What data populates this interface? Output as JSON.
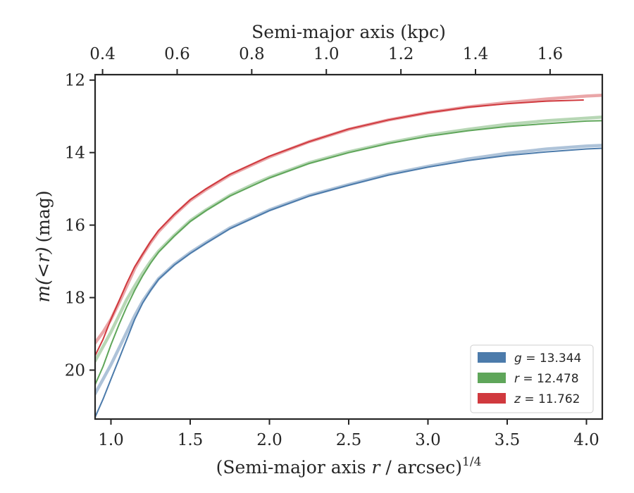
{
  "chart_data": {
    "type": "line",
    "xlabel": "(Semi-major axis r / arcsec)^1/4",
    "xlabel_parts": {
      "pre": "(Semi-major axis ",
      "var": "r",
      "post": " / arcsec)",
      "sup": "1/4"
    },
    "ylabel": "m(<r) (mag)",
    "ylabel_parts": {
      "math": "m(<r)",
      "unit": "(mag)"
    },
    "top_xlabel": "Semi-major axis (kpc)",
    "xlim": [
      0.9,
      4.1
    ],
    "ylim": [
      21.35,
      11.85
    ],
    "y_inverted": true,
    "top_xlim": [
      0.38,
      1.74
    ],
    "x_ticks": [
      "1.0",
      "1.5",
      "2.0",
      "2.5",
      "3.0",
      "3.5",
      "4.0"
    ],
    "y_ticks": [
      "12",
      "14",
      "16",
      "18",
      "20"
    ],
    "top_x_ticks": [
      "0.4",
      "0.6",
      "0.8",
      "1.0",
      "1.2",
      "1.4",
      "1.6"
    ],
    "grid": false,
    "legend_position": "lower-right",
    "series": [
      {
        "name": "g = 13.344",
        "legend_var": "g",
        "legend_value": "13.344",
        "color": "#4c7bab",
        "observed": {
          "x": [
            0.9,
            0.95,
            1.0,
            1.05,
            1.1,
            1.15,
            1.2,
            1.25,
            1.3,
            1.4,
            1.5,
            1.6,
            1.75,
            1.9,
            2.0,
            2.25,
            2.5,
            2.75,
            3.0,
            3.25,
            3.5,
            3.75,
            4.0,
            4.1
          ],
          "y": [
            21.3,
            20.8,
            20.25,
            19.7,
            19.15,
            18.6,
            18.15,
            17.8,
            17.5,
            17.1,
            16.78,
            16.5,
            16.1,
            15.8,
            15.6,
            15.2,
            14.9,
            14.62,
            14.4,
            14.22,
            14.08,
            13.98,
            13.9,
            13.88
          ]
        },
        "model": {
          "x": [
            0.9,
            0.95,
            1.0,
            1.05,
            1.1,
            1.15,
            1.2,
            1.25,
            1.3,
            1.4,
            1.5,
            1.6,
            1.75,
            1.9,
            2.0,
            2.25,
            2.5,
            2.75,
            3.0,
            3.25,
            3.5,
            3.75,
            4.0,
            4.1
          ],
          "y": [
            20.65,
            20.25,
            19.85,
            19.4,
            18.95,
            18.5,
            18.1,
            17.78,
            17.48,
            17.08,
            16.76,
            16.48,
            16.08,
            15.78,
            15.58,
            15.18,
            14.88,
            14.6,
            14.38,
            14.18,
            14.02,
            13.9,
            13.82,
            13.8
          ]
        }
      },
      {
        "name": "r = 12.478",
        "legend_var": "r",
        "legend_value": "12.478",
        "color": "#5fa65a",
        "observed": {
          "x": [
            0.9,
            0.95,
            1.0,
            1.05,
            1.1,
            1.15,
            1.2,
            1.25,
            1.3,
            1.4,
            1.5,
            1.6,
            1.75,
            1.9,
            2.0,
            2.25,
            2.5,
            2.75,
            3.0,
            3.25,
            3.5,
            3.75,
            4.0,
            4.1
          ],
          "y": [
            20.4,
            19.9,
            19.3,
            18.75,
            18.25,
            17.8,
            17.4,
            17.05,
            16.75,
            16.3,
            15.9,
            15.6,
            15.2,
            14.9,
            14.7,
            14.3,
            14.0,
            13.75,
            13.55,
            13.4,
            13.28,
            13.2,
            13.13,
            13.12
          ]
        },
        "model": {
          "x": [
            0.9,
            0.95,
            1.0,
            1.05,
            1.1,
            1.15,
            1.2,
            1.25,
            1.3,
            1.4,
            1.5,
            1.6,
            1.75,
            1.9,
            2.0,
            2.25,
            2.5,
            2.75,
            3.0,
            3.25,
            3.5,
            3.75,
            4.0,
            4.1
          ],
          "y": [
            19.75,
            19.35,
            18.95,
            18.5,
            18.05,
            17.68,
            17.32,
            17.0,
            16.72,
            16.28,
            15.88,
            15.58,
            15.18,
            14.87,
            14.68,
            14.28,
            13.98,
            13.73,
            13.52,
            13.36,
            13.22,
            13.12,
            13.05,
            13.02
          ]
        }
      },
      {
        "name": "z = 11.762",
        "legend_var": "z",
        "legend_value": "11.762",
        "color": "#d0393e",
        "observed": {
          "x": [
            0.9,
            0.95,
            1.0,
            1.05,
            1.1,
            1.15,
            1.2,
            1.25,
            1.3,
            1.4,
            1.5,
            1.6,
            1.75,
            1.9,
            2.0,
            2.25,
            2.5,
            2.75,
            3.0,
            3.25,
            3.5,
            3.75,
            3.98
          ],
          "y": [
            19.6,
            19.15,
            18.6,
            18.1,
            17.6,
            17.15,
            16.8,
            16.45,
            16.15,
            15.7,
            15.3,
            15.0,
            14.6,
            14.3,
            14.1,
            13.7,
            13.35,
            13.1,
            12.9,
            12.75,
            12.65,
            12.58,
            12.55
          ]
        },
        "model": {
          "x": [
            0.9,
            0.95,
            1.0,
            1.05,
            1.1,
            1.15,
            1.2,
            1.25,
            1.3,
            1.4,
            1.5,
            1.6,
            1.75,
            1.9,
            2.0,
            2.25,
            2.5,
            2.75,
            3.0,
            3.25,
            3.5,
            3.75,
            4.0,
            4.1
          ],
          "y": [
            19.25,
            18.95,
            18.6,
            18.15,
            17.68,
            17.2,
            16.82,
            16.48,
            16.18,
            15.72,
            15.32,
            15.02,
            14.62,
            14.32,
            14.12,
            13.7,
            13.36,
            13.1,
            12.9,
            12.74,
            12.62,
            12.52,
            12.44,
            12.42
          ]
        }
      }
    ]
  }
}
